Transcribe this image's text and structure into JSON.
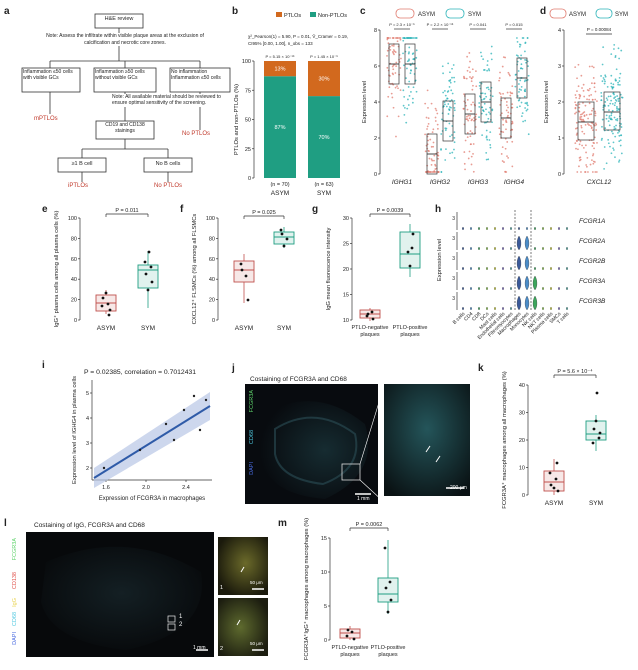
{
  "labels": {
    "a": "a",
    "b": "b",
    "c": "c",
    "d": "d",
    "e": "e",
    "f": "f",
    "g": "g",
    "h": "h",
    "i": "i",
    "j": "j",
    "k": "k",
    "l": "l",
    "m": "m"
  },
  "flow": {
    "review": "H&E review",
    "note1": "Note: Assess the infiltrate within visible plaque areas at the exclusion of calcification and necrotic core zones.",
    "box_left": "Inflammation ≤50 cells with visible GCs",
    "box_mid": "Inflammation ≥50 cells without visible GCs",
    "box_right": "No inflammation Inflammation ≤50 cells",
    "note2": "Note: All available material should be reviewed to ensure optimal sensitivity of the screening.",
    "staining": "CD19 and CD138 stainings",
    "bcell": "≥1 B cell",
    "nob": "No B cells",
    "mptlos": "mPTLOs",
    "iptlos": "iPTLOs",
    "noptlos1": "No PTLOs",
    "noptlos2": "No PTLOs",
    "color_red": "#c0392b"
  },
  "b": {
    "legend": [
      "PTLOs",
      "Non-PTLOs"
    ],
    "colors": [
      "#d2691e",
      "#1f9e82"
    ],
    "stats1": "χ²_Pearson(1) = 5.90, P = 0.01, V̂_Cramer = 0.19,",
    "stats2": "CI95% [0.00, 1.00], n_obs = 133",
    "ylabel": "PTLOs and non-PTLOs (%)",
    "pval_asym": "P = 5.15 × 10⁻¹⁶",
    "pval_sym": "P = 1.45 × 10⁻⁶",
    "categories": [
      "ASYM",
      "SYM"
    ],
    "n": [
      "(n = 70)",
      "(n = 63)"
    ],
    "ptlos_pct": [
      13,
      30
    ],
    "nonptlos_pct": [
      87,
      70
    ],
    "yticks": [
      "0",
      "25",
      "50",
      "75",
      "100"
    ]
  },
  "c": {
    "legend": [
      "ASYM",
      "SYM"
    ],
    "colors": [
      "#e07b6f",
      "#2ab3b8"
    ],
    "ylabel": "Expression level",
    "genes": [
      "IGHG1",
      "IGHG2",
      "IGHG3",
      "IGHG4"
    ],
    "pvals": [
      "P = 2.3 × 10⁻⁵",
      "P = 2.2 × 10⁻¹⁶",
      "P = 0.041",
      "P = 0.015"
    ],
    "yticks": [
      "0",
      "2",
      "4",
      "6",
      "8"
    ]
  },
  "d": {
    "legend": [
      "ASYM",
      "SYM"
    ],
    "ylabel": "Expression level",
    "gene": "CXCL12",
    "pval": "P = 0.00084",
    "yticks": [
      "0",
      "1",
      "2",
      "3",
      "4"
    ]
  },
  "e": {
    "ylabel": "IgG⁺ plasma cells among all plasma cells (%)",
    "pval": "P = 0.011",
    "categories": [
      "ASYM",
      "SYM"
    ],
    "yticks": [
      "0",
      "20",
      "40",
      "60",
      "80",
      "100"
    ]
  },
  "f": {
    "ylabel": "CXCL12⁺ FLSMCs (%) among all FLSMCs",
    "pval": "P = 0.025",
    "categories": [
      "ASYM",
      "SYM"
    ],
    "yticks": [
      "0",
      "20",
      "40",
      "60",
      "80",
      "100"
    ]
  },
  "g": {
    "ylabel": "IgG mean fluorescence intensity",
    "pval": "P = 0.0039",
    "categories": [
      "PTLO-negative plaques",
      "PTLO-positive plaques"
    ],
    "yticks": [
      "10",
      "15",
      "20",
      "25",
      "30"
    ]
  },
  "h": {
    "ylabel": "Expression level",
    "genes": [
      "FCGR1A",
      "FCGR2A",
      "FCGR2B",
      "FCGR3A",
      "FCGR3B"
    ],
    "celltypes": [
      "B cells",
      "CD4",
      "CD8",
      "DCs",
      "Mast cells",
      "Endothelial cells",
      "Fibromyocytes",
      "Macrophages",
      "Monocytes",
      "NK cells",
      "NKT cells",
      "Plasma cells",
      "SMCs",
      "T cells"
    ],
    "ytick": "3"
  },
  "i": {
    "title": "P = 0.02385, correlation = 0.7012431",
    "ylabel": "Expression level of IGHG4 in plasma cells",
    "xlabel": "Expression of FCGR3A in macrophages",
    "xticks": [
      "1.6",
      "2.0",
      "2.4"
    ],
    "yticks": [
      "2",
      "3",
      "4",
      "5"
    ]
  },
  "j": {
    "title": "Costaining of FCGR3A and CD68",
    "ch1": "FCGR3A",
    "ch2": "CD68",
    "ch3": "DAPI",
    "scale1": "1 mm",
    "scale2": "200 μm"
  },
  "k": {
    "ylabel": "FCGR3A⁺ macrophages among all macrophages (%)",
    "pval": "P = 5.6 × 10⁻⁴",
    "categories": [
      "ASYM",
      "SYM"
    ],
    "yticks": [
      "0",
      "10",
      "20",
      "30",
      "40"
    ]
  },
  "l": {
    "title": "Costaining of IgG, FCGR3A and CD68",
    "ch_fcgr3a": "FCGR3A",
    "ch_cd138": "CD138",
    "ch_igg": "IgG",
    "ch_cd68": "CD68",
    "ch_dapi": "DAPI",
    "scale1": "1 mm",
    "scale2": "50 μm",
    "scale3": "50 μm",
    "inset1": "1",
    "inset2": "2",
    "mark1": "1",
    "mark2": "2"
  },
  "m": {
    "ylabel": "FCGR3A⁺IgG⁺ macrophages among macrophages (%)",
    "pval": "P = 0.0062",
    "categories": [
      "PTLO-negative plaques",
      "PTLO-positive plaques"
    ],
    "yticks": [
      "0",
      "5",
      "10",
      "15"
    ]
  }
}
